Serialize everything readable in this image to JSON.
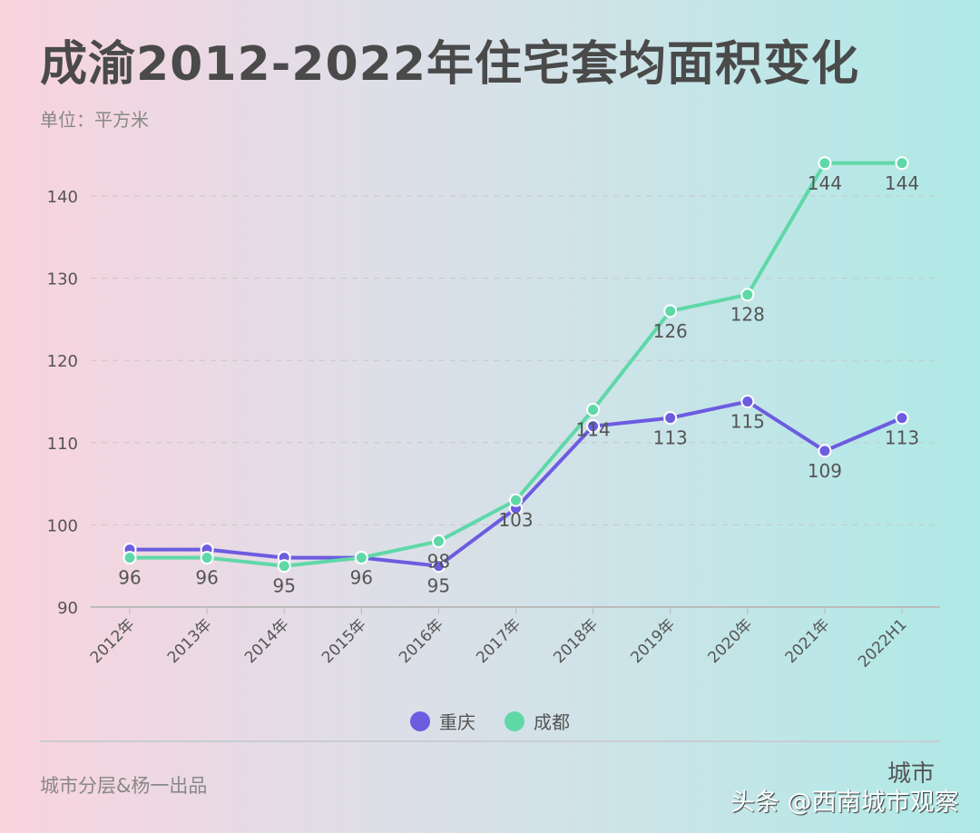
{
  "title": "成渝2012-2022年住宅套均面积变化",
  "unit": "单位：平方米",
  "credit": "城市分层&杨一出品",
  "watermark": "头条 @西南城市观察",
  "watermark_logo": "城市",
  "chart_data": {
    "type": "line",
    "title": "成渝2012-2022年住宅套均面积变化",
    "ylabel": "单位：平方米",
    "categories": [
      "2012年",
      "2013年",
      "2014年",
      "2015年",
      "2016年",
      "2017年",
      "2018年",
      "2019年",
      "2020年",
      "2021年",
      "2022H1"
    ],
    "ylim": [
      90,
      145
    ],
    "yticks": [
      90,
      100,
      110,
      120,
      130,
      140
    ],
    "grid": true,
    "legend_position": "bottom",
    "series": [
      {
        "name": "重庆",
        "color": "#6c5ce0",
        "values": [
          97,
          97,
          96,
          96,
          95,
          102,
          112,
          113,
          115,
          109,
          113
        ]
      },
      {
        "name": "成都",
        "color": "#5fd8a8",
        "values": [
          96,
          96,
          95,
          96,
          98,
          103,
          114,
          126,
          128,
          144,
          144
        ]
      }
    ]
  }
}
